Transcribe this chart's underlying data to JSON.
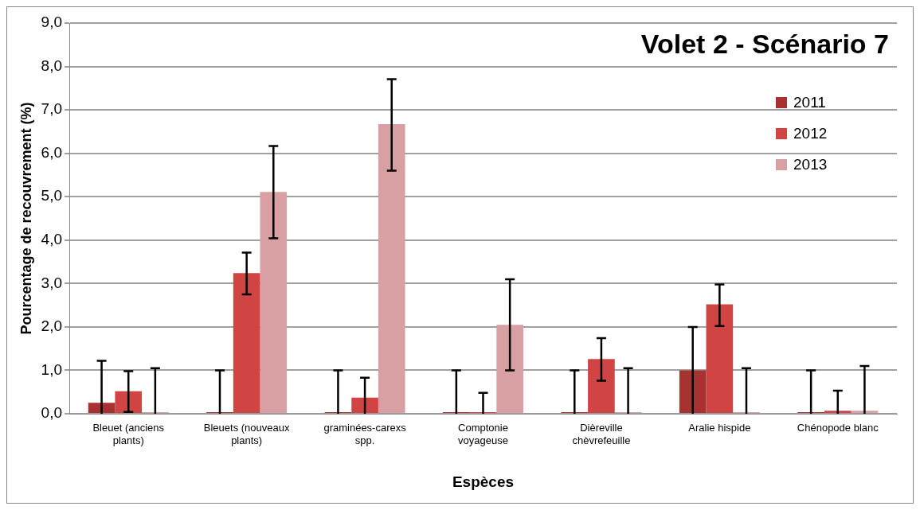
{
  "chart_data": {
    "type": "bar",
    "title": "Volet 2 - Scénario 7",
    "xlabel": "Espèces",
    "ylabel": "Pourcentage de recouvrement (%)",
    "categories": [
      "Bleuet (anciens plants)",
      "Bleuets (nouveaux plants)",
      "graminées-carexs spp.",
      "Comptonie voyageuse",
      "Dièreville chèvrefeuille",
      "Aralie hispide",
      "Chénopode blanc"
    ],
    "series": [
      {
        "name": "2011",
        "color": "#a83232",
        "values": [
          0.25,
          0,
          0,
          0,
          0,
          1.0,
          0
        ],
        "errors": [
          [
            0,
            1.22
          ],
          [
            0,
            1.0
          ],
          [
            0,
            1.0
          ],
          [
            0,
            1.0
          ],
          [
            0,
            1.0
          ],
          [
            0,
            2.0
          ],
          [
            0,
            1.0
          ]
        ]
      },
      {
        "name": "2012",
        "color": "#d04444",
        "values": [
          0.52,
          3.24,
          0.37,
          0,
          1.26,
          2.52,
          0.07
        ],
        "errors": [
          [
            0.04,
            0.98
          ],
          [
            2.75,
            3.71
          ],
          [
            0,
            0.83
          ],
          [
            0,
            0.48
          ],
          [
            0.76,
            1.74
          ],
          [
            2.02,
            2.98
          ],
          [
            0,
            0.53
          ]
        ]
      },
      {
        "name": "2013",
        "color": "#d8a0a2",
        "values": [
          0,
          5.11,
          6.67,
          2.05,
          0,
          0,
          0.07
        ],
        "errors": [
          [
            0,
            1.05
          ],
          [
            4.04,
            6.17
          ],
          [
            5.6,
            7.71
          ],
          [
            1.0,
            3.1
          ],
          [
            0,
            1.05
          ],
          [
            0,
            1.05
          ],
          [
            0,
            1.1
          ]
        ]
      }
    ],
    "ylim": [
      0,
      9
    ],
    "yticks": [
      {
        "value": 0,
        "label": "0,0"
      },
      {
        "value": 1,
        "label": "1,0"
      },
      {
        "value": 2,
        "label": "2,0"
      },
      {
        "value": 3,
        "label": "3,0"
      },
      {
        "value": 4,
        "label": "4,0"
      },
      {
        "value": 5,
        "label": "5,0"
      },
      {
        "value": 6,
        "label": "6,0"
      },
      {
        "value": 7,
        "label": "7,0"
      },
      {
        "value": 8,
        "label": "8,0"
      },
      {
        "value": 9,
        "label": "9,0"
      }
    ],
    "grid": "y",
    "legend": "top right"
  }
}
